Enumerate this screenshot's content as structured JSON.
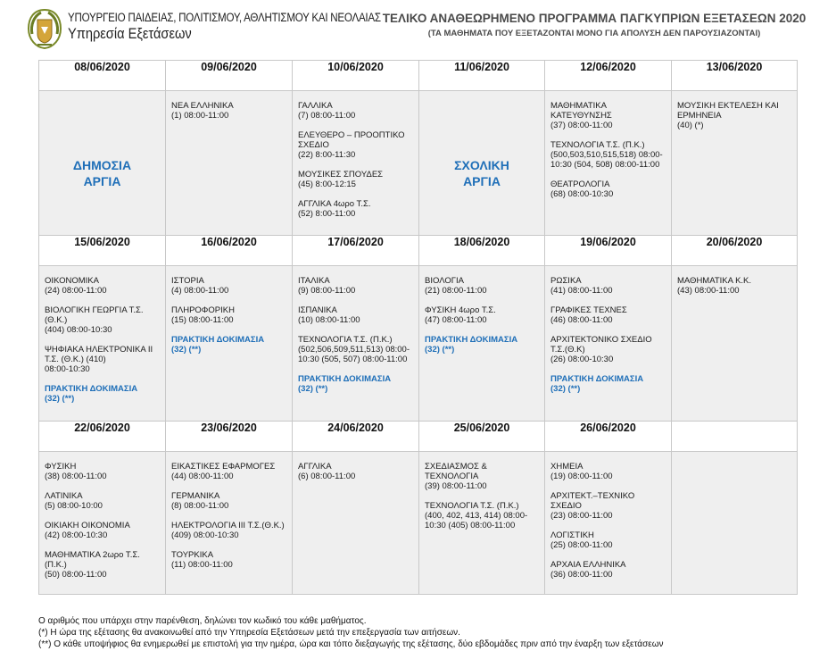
{
  "header": {
    "ministry_line1": "ΥΠΟΥΡΓΕΙΟ ΠΑΙΔΕΙΑΣ, ΠΟΛΙΤΙΣΜΟΥ, ΑΘΛΗΤΙΣΜΟΥ ΚΑΙ ΝΕΟΛΑΙΑΣ",
    "ministry_line2": "Υπηρεσία Εξετάσεων",
    "title": "ΤΕΛΙΚΟ ΑΝΑΘΕΩΡΗΜΕΝΟ ΠΡΟΓΡΑΜΜΑ ΠΑΓΚΥΠΡΙΩΝ ΕΞΕΤΑΣΕΩΝ 2020",
    "subtitle": "(ΤΑ ΜΑΘΗΜΑΤΑ ΠΟΥ ΕΞΕΤΑΖΟΝΤΑΙ ΜΟΝΟ ΓΙΑ ΑΠΟΛΥΣΗ ΔΕΝ ΠΑΡΟΥΣΙΑΖΟΝΤΑΙ)"
  },
  "colors": {
    "accent": "#1f6fb8",
    "cell_bg": "#efefef",
    "border": "#c8c8c8"
  },
  "rows": [
    {
      "dates": [
        "08/06/2020",
        "09/06/2020",
        "10/06/2020",
        "11/06/2020",
        "12/06/2020",
        "13/06/2020"
      ],
      "cells": [
        {
          "holiday": [
            "ΔΗΜΟΣΙΑ",
            "ΑΡΓΙΑ"
          ]
        },
        {
          "subjects": [
            {
              "name": "ΝΕΑ ΕΛΛΗΝΙΚΑ",
              "time": "(1) 08:00-11:00"
            }
          ]
        },
        {
          "subjects": [
            {
              "name": "ΓΑΛΛΙΚΑ",
              "time": "(7) 08:00-11:00"
            },
            {
              "name": "ΕΛΕΥΘΕΡΟ – ΠΡΟΟΠΤΙΚΟ ΣΧΕΔΙΟ",
              "time": "(22) 8:00-11:30"
            },
            {
              "name": "ΜΟΥΣΙΚΕΣ ΣΠΟΥΔΕΣ",
              "time": "(45) 8:00-12:15"
            },
            {
              "name": "ΑΓΓΛΙΚΑ 4ωρο Τ.Σ.",
              "time": "(52) 8:00-11:00"
            }
          ]
        },
        {
          "holiday": [
            "ΣΧΟΛΙΚΗ",
            "ΑΡΓΙΑ"
          ]
        },
        {
          "subjects": [
            {
              "name": "ΜΑΘΗΜΑΤΙΚΑ ΚΑΤΕΥΘΥΝΣΗΣ",
              "time": "(37) 08:00-11:00"
            },
            {
              "name": "ΤΕΧΝΟΛΟΓΙΑ Τ.Σ. (Π.Κ.)",
              "time": "(500,503,510,515,518) 08:00-10:30 (504, 508) 08:00-11:00"
            },
            {
              "name": "ΘΕΑΤΡΟΛΟΓΙΑ",
              "time": "(68) 08:00-10:30"
            }
          ]
        },
        {
          "subjects": [
            {
              "name": "ΜΟΥΣΙΚΗ ΕΚΤΕΛΕΣΗ ΚΑΙ ΕΡΜΗΝΕΙΑ",
              "time": "(40) (*)"
            }
          ]
        }
      ]
    },
    {
      "dates": [
        "15/06/2020",
        "16/06/2020",
        "17/06/2020",
        "18/06/2020",
        "19/06/2020",
        "20/06/2020"
      ],
      "cells": [
        {
          "subjects": [
            {
              "name": "ΟΙΚΟΝΟΜΙΚΑ",
              "time": "(24) 08:00-11:00"
            },
            {
              "name": "ΒΙΟΛΟΓΙΚΗ ΓΕΩΡΓΙΑ Τ.Σ. (Θ.Κ.)",
              "time": "(404) 08:00-10:30"
            },
            {
              "name": "ΨΗΦΙΑΚΑ ΗΛΕΚΤΡΟΝΙΚΑ ΙΙ Τ.Σ. (Θ.Κ.) (410)",
              "time": "08:00-10:30"
            }
          ],
          "practical": {
            "name": "ΠΡΑΚΤΙΚΗ ΔΟΚΙΜΑΣΙΑ",
            "code": "(32) (**)"
          }
        },
        {
          "subjects": [
            {
              "name": "ΙΣΤΟΡΙΑ",
              "time": "(4) 08:00-11:00"
            },
            {
              "name": "ΠΛΗΡΟΦΟΡΙΚΗ",
              "time": "(15) 08:00-11:00"
            }
          ],
          "practical": {
            "name": "ΠΡΑΚΤΙΚΗ ΔΟΚΙΜΑΣΙΑ",
            "code": "(32) (**)"
          }
        },
        {
          "subjects": [
            {
              "name": "ΙΤΑΛΙΚΑ",
              "time": "(9) 08:00-11:00"
            },
            {
              "name": "ΙΣΠΑΝΙΚΑ",
              "time": "(10) 08:00-11:00"
            },
            {
              "name": "ΤΕΧΝΟΛΟΓΙΑ Τ.Σ. (Π.Κ.)",
              "time": "(502,506,509,511,513) 08:00-10:30 (505, 507) 08:00-11:00"
            }
          ],
          "practical": {
            "name": "ΠΡΑΚΤΙΚΗ ΔΟΚΙΜΑΣΙΑ",
            "code": "(32) (**)"
          }
        },
        {
          "subjects": [
            {
              "name": "ΒΙΟΛΟΓΙΑ",
              "time": "(21) 08:00-11:00"
            },
            {
              "name": "ΦΥΣΙΚΗ 4ωρο Τ.Σ.",
              "time": "(47) 08:00-11:00"
            }
          ],
          "practical": {
            "name": "ΠΡΑΚΤΙΚΗ ΔΟΚΙΜΑΣΙΑ",
            "code": "(32) (**)"
          }
        },
        {
          "subjects": [
            {
              "name": "ΡΩΣΙΚΑ",
              "time": "(41) 08:00-11:00"
            },
            {
              "name": "ΓΡΑΦΙΚΕΣ ΤΕΧΝΕΣ",
              "time": "(46) 08:00-11:00"
            },
            {
              "name": "ΑΡΧΙΤΕΚΤΟΝΙΚΟ ΣΧΕΔΙΟ Τ.Σ.(Θ.Κ)",
              "time": "(26) 08:00-10:30"
            }
          ],
          "practical": {
            "name": "ΠΡΑΚΤΙΚΗ ΔΟΚΙΜΑΣΙΑ",
            "code": "(32) (**)"
          }
        },
        {
          "subjects": [
            {
              "name": "ΜΑΘΗΜΑΤΙΚΑ Κ.Κ.",
              "time": "(43) 08:00-11:00"
            }
          ]
        }
      ]
    },
    {
      "dates": [
        "22/06/2020",
        "23/06/2020",
        "24/06/2020",
        "25/06/2020",
        "26/06/2020",
        ""
      ],
      "cells": [
        {
          "subjects": [
            {
              "name": "ΦΥΣΙΚΗ",
              "time": "(38) 08:00-11:00"
            },
            {
              "name": "ΛΑΤΙΝΙΚΑ",
              "time": "(5) 08:00-10:00"
            },
            {
              "name": "ΟΙΚΙΑΚΗ ΟΙΚΟΝΟΜΙΑ",
              "time": "(42) 08:00-10:30"
            },
            {
              "name": "ΜΑΘΗΜΑΤΙΚΑ 2ωρο Τ.Σ. (Π.Κ.)",
              "time": "(50) 08:00-11:00"
            }
          ]
        },
        {
          "subjects": [
            {
              "name": "ΕΙΚΑΣΤΙΚΕΣ ΕΦΑΡΜΟΓΕΣ",
              "time": "(44) 08:00-11:00"
            },
            {
              "name": "ΓΕΡΜΑΝΙΚΑ",
              "time": "(8) 08:00-11:00"
            },
            {
              "name": "ΗΛΕΚΤΡΟΛΟΓΙΑ ΙΙΙ Τ.Σ.(Θ.Κ.)",
              "time": "(409) 08:00-10:30"
            },
            {
              "name": "ΤΟΥΡΚΙΚΑ",
              "time": "(11) 08:00-11:00"
            }
          ]
        },
        {
          "subjects": [
            {
              "name": "ΑΓΓΛΙΚΑ",
              "time": "(6) 08:00-11:00"
            }
          ]
        },
        {
          "subjects": [
            {
              "name": "ΣΧΕΔΙΑΣΜΟΣ & ΤΕΧΝΟΛΟΓΙΑ",
              "time": "(39) 08:00-11:00"
            },
            {
              "name": "ΤΕΧΝΟΛΟΓΙΑ Τ.Σ. (Π.Κ.)",
              "time": "(400, 402, 413, 414) 08:00-10:30 (405) 08:00-11:00"
            }
          ]
        },
        {
          "subjects": [
            {
              "name": "ΧΗΜΕΙΑ",
              "time": "(19) 08:00-11:00"
            },
            {
              "name": "ΑΡΧΙΤΕΚΤ.–ΤΕΧΝΙΚΟ ΣΧΕΔΙΟ",
              "time": "(23) 08:00-11:00"
            },
            {
              "name": "ΛΟΓΙΣΤΙΚΗ",
              "time": "(25) 08:00-11:00"
            },
            {
              "name": "ΑΡΧΑΙΑ ΕΛΛΗΝΙΚΑ",
              "time": "(36) 08:00-11:00"
            }
          ]
        },
        {
          "subjects": []
        }
      ]
    }
  ],
  "notes": [
    "Ο αριθμός που υπάρχει στην παρένθεση, δηλώνει τον κωδικό του κάθε μαθήματος.",
    "(*) Η ώρα της εξέτασης θα ανακοινωθεί από την Υπηρεσία Εξετάσεων μετά την επεξεργασία των αιτήσεων.",
    "(**) Ο κάθε υποψήφιος θα ενημερωθεί με επιστολή για την ημέρα, ώρα και τόπο διεξαγωγής της εξέτασης, δύο εβδομάδες πριν από την έναρξη των εξετάσεων"
  ]
}
